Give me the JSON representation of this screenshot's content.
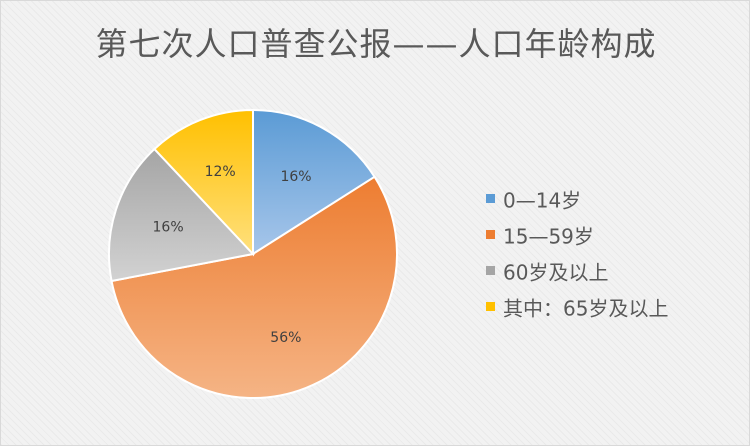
{
  "chart_data": {
    "type": "pie",
    "title": "第七次人口普查公报——人口年龄构成",
    "legend_position": "right",
    "slices": [
      {
        "label": "0—14岁",
        "value": 16,
        "display": "16%",
        "color": "#5b9bd5",
        "color_light": "#a7c6ea"
      },
      {
        "label": "15—59岁",
        "value": 56,
        "display": "56%",
        "color": "#ed7d31",
        "color_light": "#f5b485"
      },
      {
        "label": "60岁及以上",
        "value": 16,
        "display": "16%",
        "color": "#a5a5a5",
        "color_light": "#d2d2d2"
      },
      {
        "label": "其中：65岁及以上",
        "value": 12,
        "display": "12%",
        "color": "#ffc000",
        "color_light": "#ffe07d"
      }
    ]
  }
}
